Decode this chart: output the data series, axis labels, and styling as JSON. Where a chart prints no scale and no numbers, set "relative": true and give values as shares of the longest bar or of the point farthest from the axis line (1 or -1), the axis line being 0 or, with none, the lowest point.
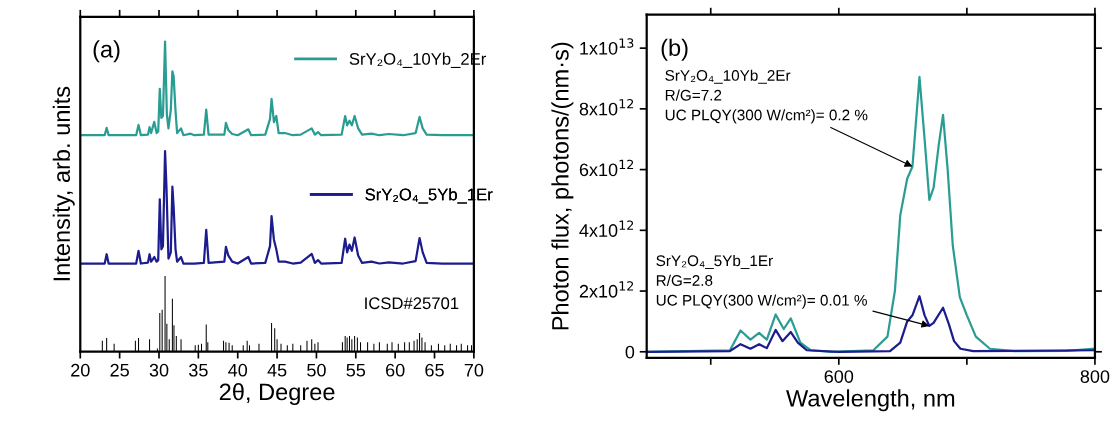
{
  "chart_data": [
    {
      "type": "line",
      "relative": true,
      "xlabel": "2θ, Degree",
      "ylabel": "Intensity, arb. units",
      "xlim": [
        20,
        70
      ],
      "xticks": [
        20,
        25,
        30,
        35,
        40,
        45,
        50,
        55,
        60,
        65,
        70
      ],
      "legend": "right",
      "annotations": [
        "(a)"
      ],
      "series": [
        {
          "name": "SrY₂O₄_10Yb_2Er",
          "color": "#2a9d93",
          "x": [
            20,
            23.1,
            23.35,
            23.6,
            27.1,
            27.4,
            27.7,
            28.6,
            28.8,
            29.0,
            29.4,
            29.7,
            29.9,
            30.1,
            30.3,
            30.5,
            30.77,
            31.0,
            31.2,
            31.5,
            31.7,
            31.86,
            32.1,
            32.3,
            32.8,
            33.1,
            34.0,
            34.5,
            35.7,
            36.0,
            36.3,
            38.3,
            38.5,
            38.8,
            39.3,
            40.0,
            41.35,
            41.7,
            43.5,
            44.1,
            44.3,
            44.6,
            44.9,
            45.2,
            46.0,
            47.0,
            48.0,
            49.4,
            49.8,
            50.2,
            50.6,
            53.2,
            53.65,
            53.9,
            54.2,
            54.5,
            54.85,
            55.3,
            55.8,
            57.0,
            58.0,
            59.2,
            61.0,
            62.6,
            63.1,
            63.5,
            64.0,
            66,
            70
          ],
          "values": [
            0.698,
            0.698,
            0.722,
            0.698,
            0.698,
            0.731,
            0.698,
            0.7,
            0.724,
            0.705,
            0.741,
            0.705,
            0.71,
            0.848,
            0.754,
            0.76,
            1.0,
            0.765,
            0.72,
            0.78,
            0.904,
            0.888,
            0.776,
            0.705,
            0.72,
            0.698,
            0.703,
            0.698,
            0.7,
            0.781,
            0.7,
            0.7,
            0.738,
            0.715,
            0.702,
            0.698,
            0.717,
            0.698,
            0.7,
            0.75,
            0.815,
            0.74,
            0.76,
            0.705,
            0.705,
            0.698,
            0.7,
            0.72,
            0.7,
            0.708,
            0.698,
            0.7,
            0.76,
            0.73,
            0.745,
            0.73,
            0.76,
            0.72,
            0.7,
            0.703,
            0.698,
            0.702,
            0.698,
            0.705,
            0.757,
            0.72,
            0.7,
            0.698,
            0.698
          ]
        },
        {
          "name": "SrY₂O₄_5Yb_1Er",
          "color": "#1c1c8e",
          "x": [
            20,
            23.1,
            23.35,
            23.6,
            27.1,
            27.4,
            27.7,
            28.6,
            28.8,
            29.0,
            29.4,
            29.7,
            29.9,
            30.1,
            30.3,
            30.5,
            30.77,
            30.95,
            31.2,
            31.5,
            31.7,
            31.86,
            32.1,
            32.3,
            32.8,
            33.1,
            34.5,
            35.7,
            36.0,
            36.3,
            38.3,
            38.5,
            38.8,
            39.3,
            40.0,
            41.35,
            41.7,
            43.5,
            44.1,
            44.3,
            44.6,
            44.9,
            45.2,
            46.0,
            47.0,
            48.0,
            49.4,
            49.8,
            50.2,
            50.6,
            53.2,
            53.65,
            53.9,
            54.2,
            54.5,
            54.85,
            55.3,
            55.8,
            57.0,
            58.0,
            59.2,
            61.0,
            62.6,
            63.1,
            63.5,
            64.0,
            66,
            70
          ],
          "values": [
            0.284,
            0.284,
            0.314,
            0.284,
            0.284,
            0.325,
            0.284,
            0.287,
            0.314,
            0.29,
            0.305,
            0.29,
            0.295,
            0.491,
            0.33,
            0.34,
            0.647,
            0.53,
            0.3,
            0.32,
            0.532,
            0.466,
            0.33,
            0.29,
            0.305,
            0.284,
            0.284,
            0.286,
            0.393,
            0.286,
            0.29,
            0.338,
            0.31,
            0.29,
            0.284,
            0.305,
            0.284,
            0.286,
            0.34,
            0.437,
            0.361,
            0.33,
            0.29,
            0.29,
            0.284,
            0.287,
            0.315,
            0.286,
            0.295,
            0.284,
            0.286,
            0.364,
            0.32,
            0.345,
            0.325,
            0.368,
            0.31,
            0.286,
            0.29,
            0.284,
            0.288,
            0.284,
            0.292,
            0.366,
            0.32,
            0.286,
            0.284,
            0.284
          ]
        },
        {
          "type": "bar",
          "name": "ICSD#25701",
          "color": "#000000",
          "x": [
            22.8,
            23.35,
            24.3,
            27.0,
            27.4,
            28.8,
            29.8,
            30.1,
            30.4,
            30.77,
            31.0,
            31.3,
            31.7,
            31.9,
            32.2,
            32.8,
            34.6,
            35.0,
            35.4,
            36.0,
            36.2,
            38.2,
            38.5,
            38.9,
            39.3,
            40.7,
            41.2,
            41.5,
            42.7,
            44.3,
            44.7,
            45.0,
            45.5,
            46.3,
            47.0,
            48.0,
            48.8,
            49.4,
            49.8,
            50.2,
            53.3,
            53.65,
            53.9,
            54.2,
            54.5,
            54.85,
            55.2,
            55.6,
            56.5,
            57.3,
            58.0,
            59.0,
            59.6,
            60.4,
            61.2,
            61.8,
            62.4,
            62.8,
            63.1,
            63.4,
            63.8,
            64.6,
            65.5,
            66.3,
            67.0,
            67.8,
            68.4,
            69.2,
            69.7
          ],
          "values": [
            0.035,
            0.044,
            0.025,
            0.035,
            0.044,
            0.04,
            0.01,
            0.124,
            0.135,
            0.244,
            0.09,
            0.04,
            0.17,
            0.085,
            0.05,
            0.04,
            0.02,
            0.022,
            0.025,
            0.087,
            0.03,
            0.035,
            0.03,
            0.028,
            0.02,
            0.02,
            0.035,
            0.02,
            0.025,
            0.092,
            0.075,
            0.04,
            0.025,
            0.02,
            0.025,
            0.02,
            0.035,
            0.04,
            0.025,
            0.03,
            0.03,
            0.05,
            0.045,
            0.05,
            0.04,
            0.05,
            0.045,
            0.03,
            0.03,
            0.025,
            0.03,
            0.025,
            0.03,
            0.025,
            0.03,
            0.03,
            0.035,
            0.04,
            0.06,
            0.045,
            0.03,
            0.02,
            0.025,
            0.02,
            0.025,
            0.02,
            0.025,
            0.02,
            0.02
          ]
        }
      ]
    },
    {
      "type": "line",
      "xlabel": "Wavelength, nm",
      "ylabel": "Photon flux, photons/(nm·s)",
      "xlim": [
        450,
        800
      ],
      "xticks": [
        {
          "value": 500,
          "label": null
        },
        600,
        {
          "value": 700,
          "label": null
        },
        800
      ],
      "ylim": [
        -200000000000.0,
        11100000000000.0
      ],
      "yticks": [
        0,
        {
          "value": 2000000000000.0,
          "label": "2x10$^{12}$"
        },
        {
          "value": 4000000000000.0,
          "label": "4x10$^{12}$"
        },
        {
          "value": 6000000000000.0,
          "label": "6x10$^{12}$"
        },
        {
          "value": 8000000000000.0,
          "label": "8x10$^{12}$"
        },
        {
          "value": 10000000000000.0,
          "label": "1x10$^{13}$"
        }
      ],
      "annotations": [
        "(b)",
        {
          "text": "SrY₂O₄_10Yb_2Er\nR/G=7.2\nUC PLQY(300 W/cm²)= 0.2 %",
          "x": 657.5,
          "y": 6100000000000.0
        },
        {
          "text": "SrY₂O₄_5Yb_1Er\nR/G=2.8\nUC PLQY(300 W/cm²)= 0.01 %",
          "x": 670.7,
          "y": 850000000000.0
        }
      ],
      "series": [
        {
          "color": "#2a9d93",
          "x": [
            450,
            515,
            523.3,
            531,
            537.8,
            543.8,
            550.7,
            557,
            562.5,
            570,
            578,
            594.5,
            627,
            638,
            643.8,
            648,
            653.4,
            657.5,
            663,
            667,
            670.7,
            674,
            678,
            681.4,
            685,
            689,
            694.5,
            700,
            707,
            718,
            737,
            778,
            800
          ],
          "values": [
            0,
            50000000000.0,
            700000000000.0,
            400000000000.0,
            620000000000.0,
            400000000000.0,
            1230000000000.0,
            750000000000.0,
            1100000000000.0,
            300000000000.0,
            50000000000.0,
            0,
            50000000000.0,
            500000000000.0,
            2000000000000.0,
            4500000000000.0,
            5700000000000.0,
            6100000000000.0,
            9050000000000.0,
            7000000000000.0,
            5000000000000.0,
            5400000000000.0,
            6800000000000.0,
            7800000000000.0,
            6000000000000.0,
            3500000000000.0,
            1800000000000.0,
            1200000000000.0,
            500000000000.0,
            100000000000.0,
            20000000000.0,
            30000000000.0,
            100000000000.0
          ]
        },
        {
          "color": "#1c1c8e",
          "x": [
            450,
            515,
            523.3,
            531,
            537.8,
            543.8,
            550.7,
            556,
            562.5,
            568,
            575,
            600,
            640,
            648,
            653.4,
            657.5,
            663,
            667,
            670.7,
            674,
            681.4,
            686,
            690,
            695,
            705,
            800
          ],
          "values": [
            0,
            20000000000.0,
            250000000000.0,
            100000000000.0,
            250000000000.0,
            120000000000.0,
            720000000000.0,
            350000000000.0,
            650000000000.0,
            300000000000.0,
            50000000000.0,
            0,
            20000000000.0,
            300000000000.0,
            1000000000000.0,
            1200000000000.0,
            1830000000000.0,
            1200000000000.0,
            850000000000.0,
            950000000000.0,
            1450000000000.0,
            900000000000.0,
            350000000000.0,
            100000000000.0,
            20000000000.0,
            50000000000.0
          ]
        }
      ]
    }
  ]
}
